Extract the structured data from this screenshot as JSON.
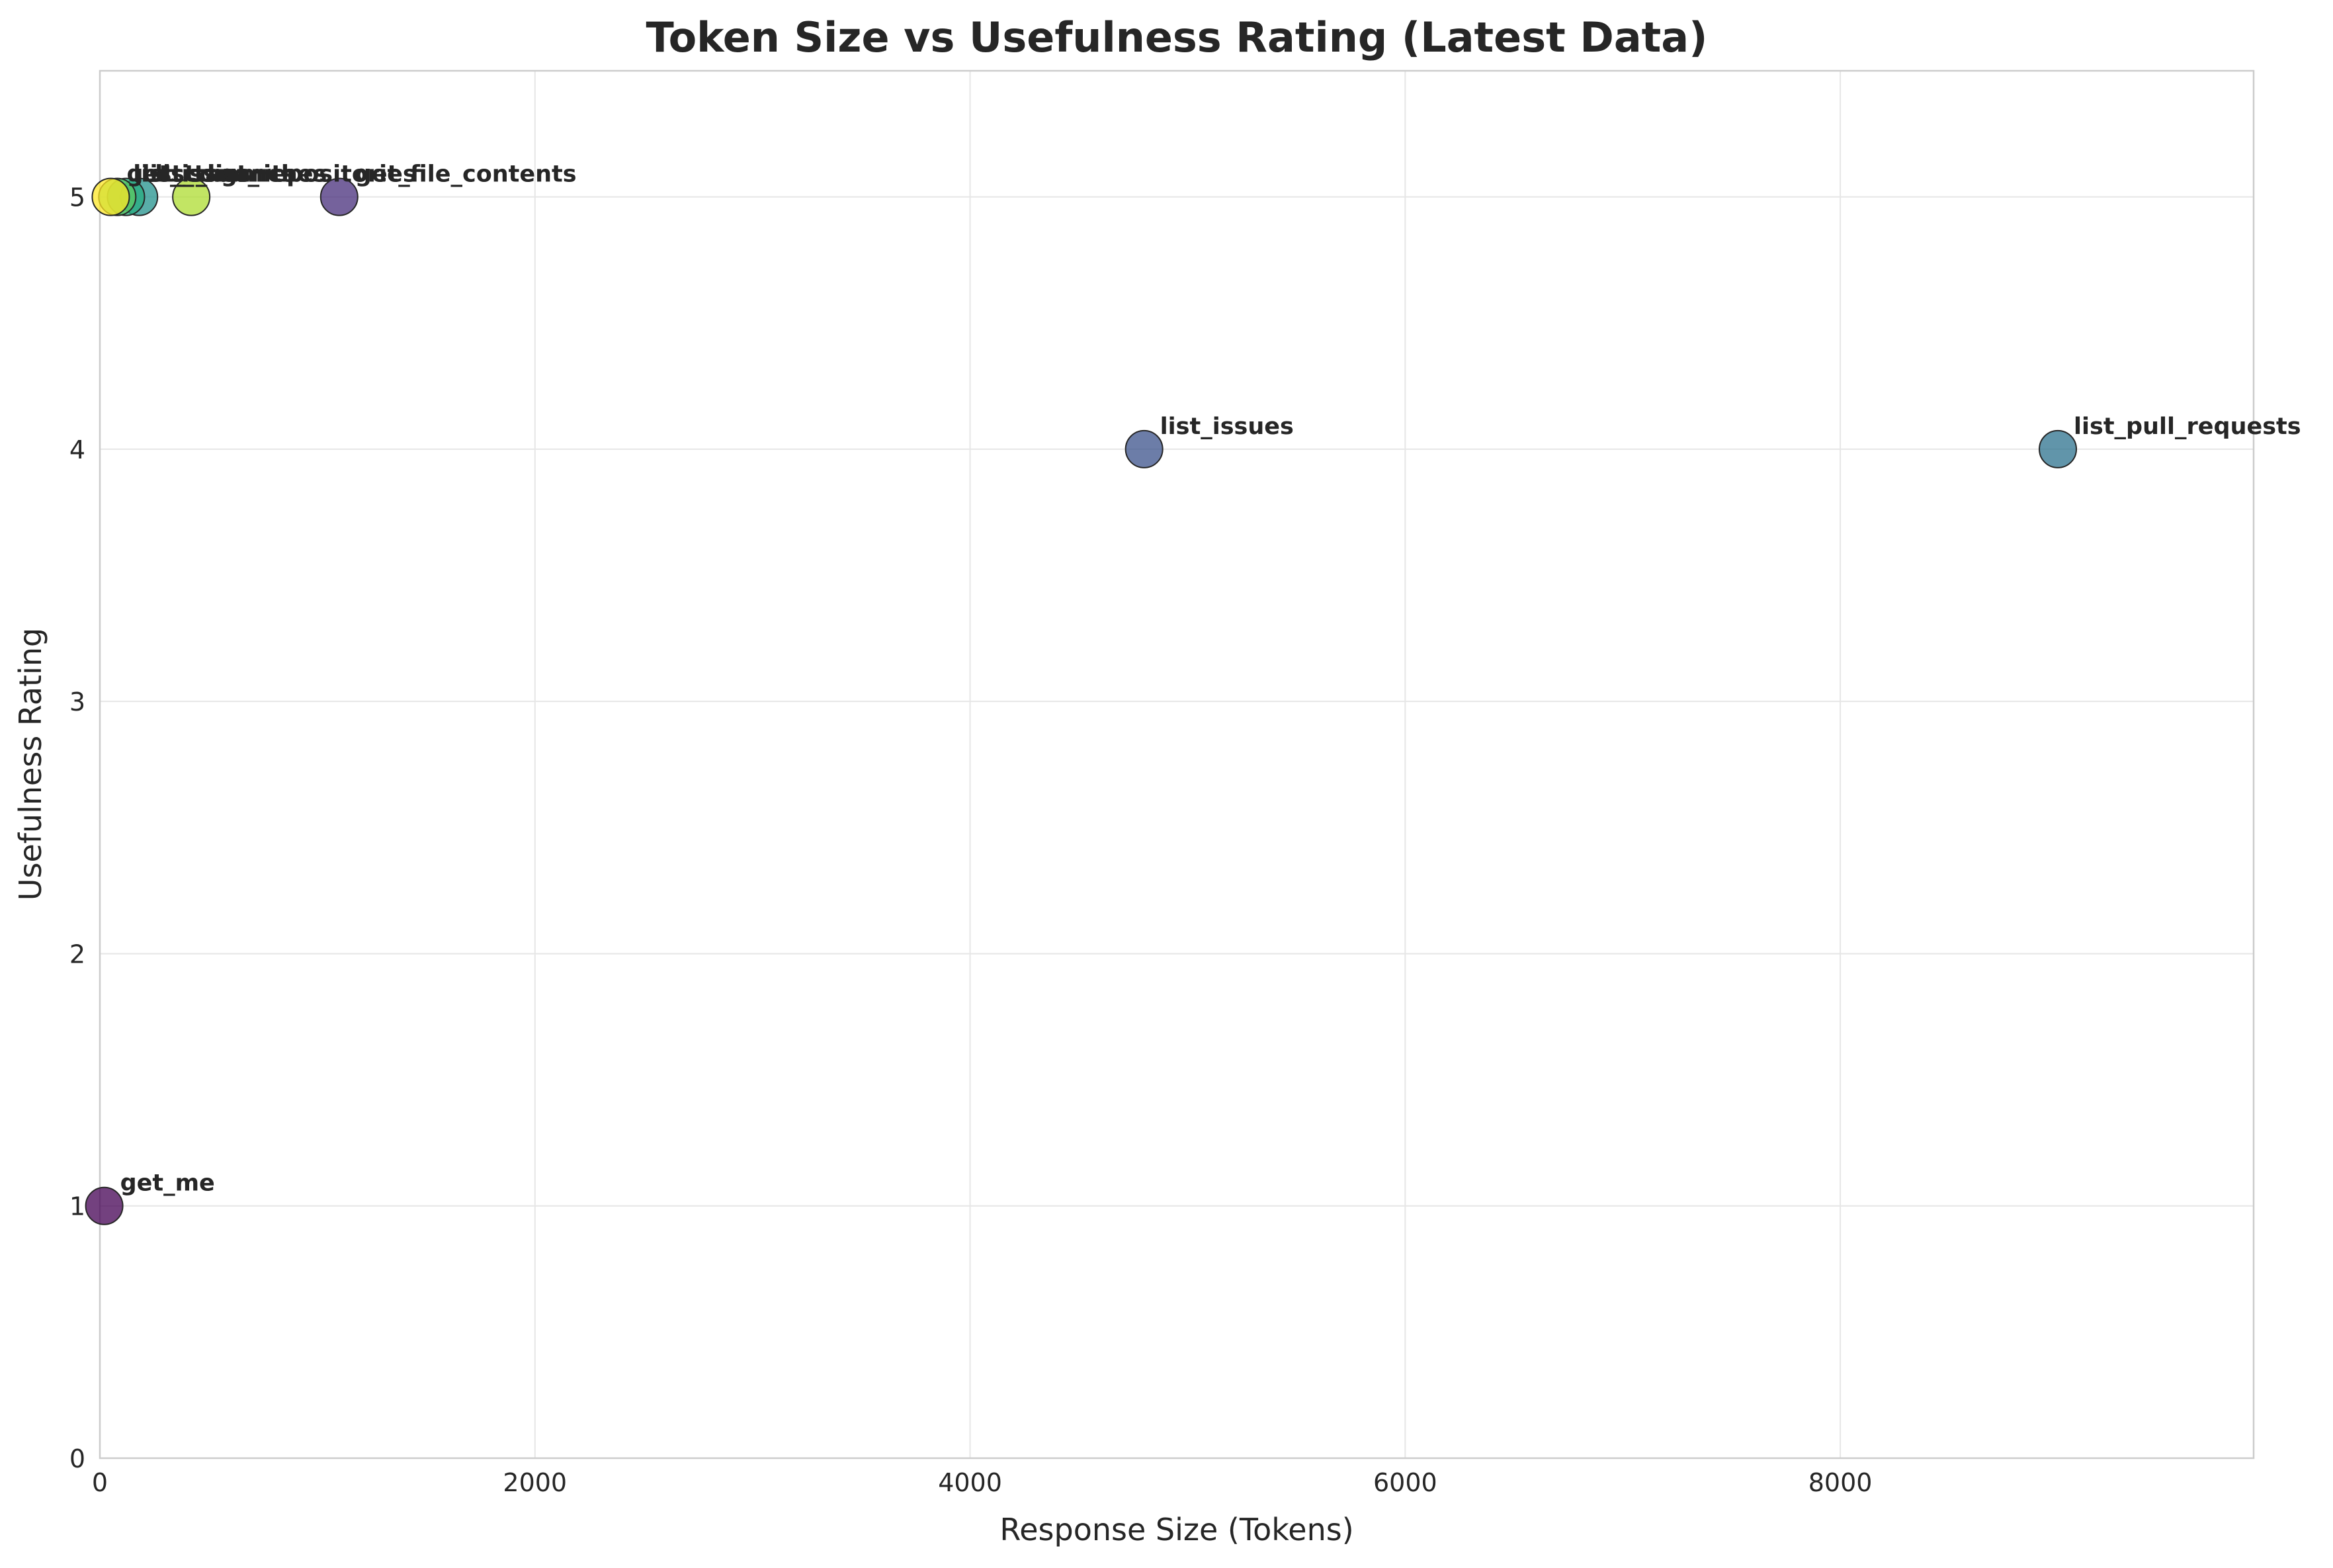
{
  "chart_data": {
    "type": "scatter",
    "title": "Token Size vs Usefulness Rating (Latest Data)",
    "xlabel": "Response Size (Tokens)",
    "ylabel": "Usefulness Rating",
    "xlim": [
      0,
      9900
    ],
    "ylim": [
      0,
      5.5
    ],
    "xticks": [
      0,
      2000,
      4000,
      6000,
      8000
    ],
    "yticks": [
      0,
      1,
      2,
      3,
      4,
      5
    ],
    "grid": true,
    "colormap": "viridis",
    "points": [
      {
        "label": "get_me",
        "x": 20,
        "y": 1,
        "color": "#440154"
      },
      {
        "label": "get_file_contents",
        "x": 1100,
        "y": 5,
        "color": "#472d7b"
      },
      {
        "label": "list_issues",
        "x": 4800,
        "y": 4,
        "color": "#3b528b"
      },
      {
        "label": "list_pull_requests",
        "x": 9000,
        "y": 4,
        "color": "#2c728e"
      },
      {
        "label": "list_branches",
        "x": 180,
        "y": 5,
        "color": "#21918c"
      },
      {
        "label": "list_tags",
        "x": 120,
        "y": 5,
        "color": "#28ae80"
      },
      {
        "label": "list_commits",
        "x": 80,
        "y": 5,
        "color": "#5ec962"
      },
      {
        "label": "list_repositories",
        "x": 420,
        "y": 5,
        "color": "#addc30"
      },
      {
        "label": "get_issue",
        "x": 50,
        "y": 5,
        "color": "#fde725"
      }
    ]
  }
}
